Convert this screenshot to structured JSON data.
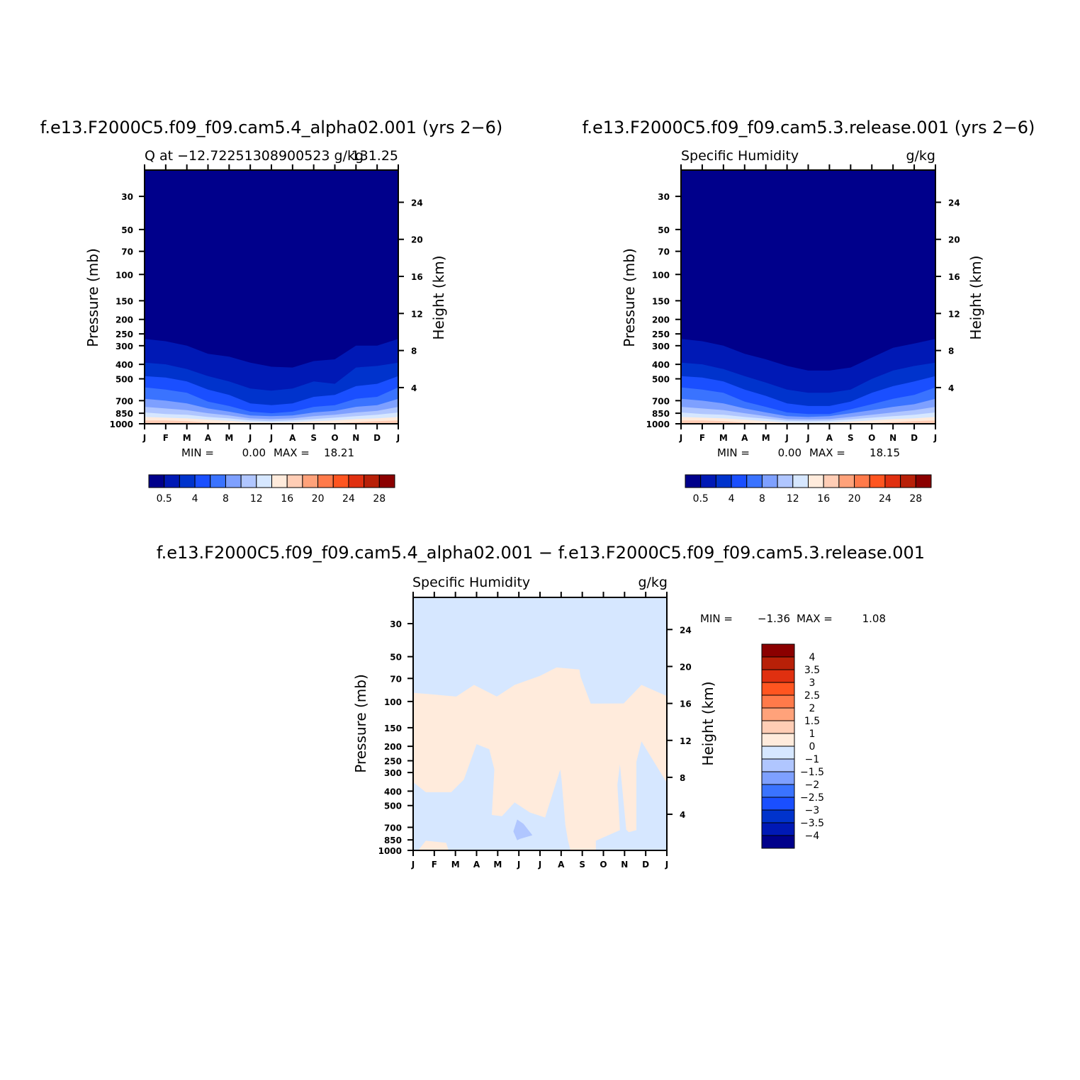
{
  "chart_data": [
    {
      "type": "heatmap",
      "title": "f.e13.F2000C5.f09_f09.cam5.4_alpha02.001 (yrs 2−6)",
      "subtitle_left": "Q at −12.72251308900523 g/kg",
      "subtitle_right": "131.25",
      "units": "",
      "xlabel": "",
      "ylabel": "Pressure (mb)",
      "ylabel_right": "Height (km)",
      "x_ticks": [
        "J",
        "F",
        "M",
        "A",
        "M",
        "J",
        "J",
        "A",
        "S",
        "O",
        "N",
        "D",
        "J"
      ],
      "y_ticks": [
        30,
        50,
        70,
        100,
        150,
        200,
        250,
        300,
        400,
        500,
        700,
        850,
        1000
      ],
      "y_right_ticks": [
        4,
        8,
        12,
        16,
        20,
        24
      ],
      "ylim": [
        1000,
        20
      ],
      "min_label": "MIN =",
      "min": "0.00",
      "max_label": "MAX =",
      "max": "18.21",
      "contour_levels_top_hPa": [
        [
          270,
          280,
          300,
          340,
          355,
          390,
          415,
          420,
          380,
          370,
          300,
          300,
          270
        ],
        [
          390,
          400,
          430,
          480,
          520,
          580,
          600,
          580,
          520,
          540,
          420,
          410,
          390
        ],
        [
          480,
          490,
          520,
          590,
          640,
          730,
          750,
          730,
          660,
          640,
          560,
          540,
          480
        ],
        [
          570,
          590,
          620,
          710,
          760,
          830,
          850,
          830,
          770,
          750,
          680,
          660,
          570
        ],
        [
          680,
          700,
          730,
          790,
          830,
          880,
          890,
          880,
          840,
          820,
          770,
          750,
          680
        ],
        [
          770,
          790,
          810,
          850,
          880,
          920,
          930,
          920,
          890,
          870,
          840,
          820,
          770
        ],
        [
          840,
          860,
          870,
          900,
          920,
          950,
          960,
          950,
          930,
          910,
          890,
          870,
          840
        ],
        [
          900,
          910,
          920,
          940,
          955,
          975,
          980,
          975,
          960,
          950,
          930,
          920,
          900
        ],
        [
          950,
          950,
          960,
          980,
          990,
          1000,
          1000,
          1000,
          1000,
          990,
          975,
          960,
          950
        ]
      ],
      "colorbar": {
        "labels": [
          "0.5",
          "4",
          "8",
          "12",
          "16",
          "20",
          "24",
          "28"
        ],
        "colors": [
          "#00008b",
          "#0019b5",
          "#0033cc",
          "#1a4fff",
          "#3a73ff",
          "#7ea0ff",
          "#b0c6ff",
          "#d6e7ff",
          "#ffebdc",
          "#ffcdb5",
          "#ffa27a",
          "#ff7a4a",
          "#ff5520",
          "#e03010",
          "#b82008",
          "#8b0000"
        ]
      }
    },
    {
      "type": "heatmap",
      "title": "f.e13.F2000C5.f09_f09.cam5.3.release.001 (yrs 2−6)",
      "subtitle_left": "Specific Humidity",
      "subtitle_right": "g/kg",
      "xlabel": "",
      "ylabel": "Pressure (mb)",
      "ylabel_right": "Height (km)",
      "x_ticks": [
        "J",
        "F",
        "M",
        "A",
        "M",
        "J",
        "J",
        "A",
        "S",
        "O",
        "N",
        "D",
        "J"
      ],
      "y_ticks": [
        30,
        50,
        70,
        100,
        150,
        200,
        250,
        300,
        400,
        500,
        700,
        850,
        1000
      ],
      "y_right_ticks": [
        4,
        8,
        12,
        16,
        20,
        24
      ],
      "ylim": [
        1000,
        20
      ],
      "min_label": "MIN =",
      "min": "0.00",
      "max_label": "MAX =",
      "max": "18.15",
      "contour_levels_top_hPa": [
        [
          270,
          280,
          300,
          340,
          370,
          410,
          440,
          440,
          420,
          360,
          310,
          290,
          270
        ],
        [
          390,
          400,
          430,
          480,
          530,
          590,
          620,
          620,
          590,
          500,
          440,
          410,
          390
        ],
        [
          480,
          490,
          520,
          590,
          650,
          730,
          760,
          760,
          710,
          620,
          560,
          520,
          480
        ],
        [
          570,
          590,
          620,
          710,
          770,
          840,
          860,
          860,
          800,
          740,
          680,
          640,
          570
        ],
        [
          680,
          700,
          730,
          790,
          840,
          890,
          900,
          890,
          850,
          810,
          770,
          740,
          680
        ],
        [
          770,
          790,
          810,
          850,
          890,
          930,
          935,
          930,
          900,
          870,
          840,
          810,
          770
        ],
        [
          840,
          860,
          870,
          900,
          925,
          955,
          960,
          955,
          935,
          910,
          890,
          870,
          840
        ],
        [
          900,
          910,
          920,
          940,
          960,
          980,
          985,
          980,
          965,
          950,
          930,
          920,
          900
        ],
        [
          950,
          950,
          960,
          980,
          995,
          1000,
          1000,
          1000,
          1000,
          990,
          975,
          960,
          950
        ]
      ],
      "colorbar": {
        "labels": [
          "0.5",
          "4",
          "8",
          "12",
          "16",
          "20",
          "24",
          "28"
        ],
        "colors": [
          "#00008b",
          "#0019b5",
          "#0033cc",
          "#1a4fff",
          "#3a73ff",
          "#7ea0ff",
          "#b0c6ff",
          "#d6e7ff",
          "#ffebdc",
          "#ffcdb5",
          "#ffa27a",
          "#ff7a4a",
          "#ff5520",
          "#e03010",
          "#b82008",
          "#8b0000"
        ]
      }
    },
    {
      "type": "heatmap",
      "title": "f.e13.F2000C5.f09_f09.cam5.4_alpha02.001 − f.e13.F2000C5.f09_f09.cam5.3.release.001",
      "subtitle_left": "Specific Humidity",
      "subtitle_right": "g/kg",
      "xlabel": "",
      "ylabel": "Pressure (mb)",
      "ylabel_right": "Height (km)",
      "x_ticks": [
        "J",
        "F",
        "M",
        "A",
        "M",
        "J",
        "J",
        "A",
        "S",
        "O",
        "N",
        "D",
        "J"
      ],
      "y_ticks": [
        30,
        50,
        70,
        100,
        150,
        200,
        250,
        300,
        400,
        500,
        700,
        850,
        1000
      ],
      "y_right_ticks": [
        4,
        8,
        12,
        16,
        20,
        24
      ],
      "ylim": [
        1000,
        20
      ],
      "min_label": "MIN =",
      "min": "−1.36",
      "max_label": "MAX =",
      "max": "1.08",
      "background_bin": "−1 to 0",
      "positive_region_bin": "0 to 1",
      "colorbar": {
        "labels": [
          "4",
          "3.5",
          "3",
          "2.5",
          "2",
          "1.5",
          "1",
          "0",
          "−1",
          "−1.5",
          "−2",
          "−2.5",
          "−3",
          "−3.5",
          "−4"
        ],
        "colors": [
          "#8b0000",
          "#b82008",
          "#e03010",
          "#ff5520",
          "#ff7a4a",
          "#ffa27a",
          "#ffcdb5",
          "#ffebdc",
          "#d6e7ff",
          "#b0c6ff",
          "#7ea0ff",
          "#3a73ff",
          "#1a4fff",
          "#0033cc",
          "#0019b5",
          "#00008b"
        ]
      }
    }
  ]
}
